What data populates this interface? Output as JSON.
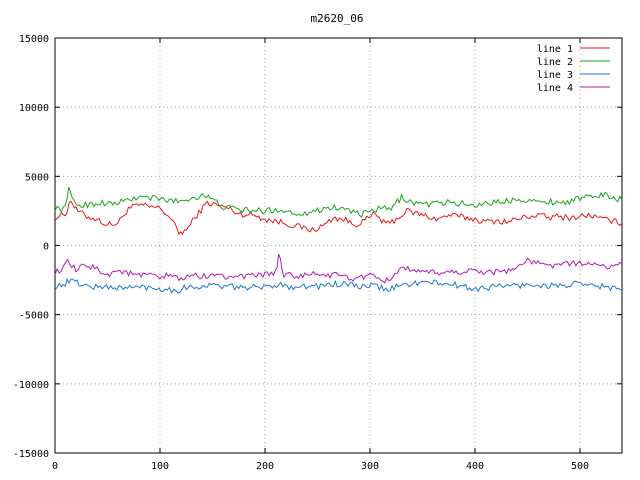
{
  "chart_data": {
    "type": "line",
    "title": "m2620_06",
    "xlabel": "",
    "ylabel": "",
    "xlim": [
      0,
      540
    ],
    "ylim": [
      -15000,
      15000
    ],
    "x_ticks": [
      0,
      100,
      200,
      300,
      400,
      500
    ],
    "y_ticks": [
      -15000,
      -10000,
      -5000,
      0,
      5000,
      10000,
      15000
    ],
    "grid": true,
    "legend_position": "top-right",
    "series": [
      {
        "name": "line 1",
        "color": "#e41a1c",
        "points": [
          [
            0,
            2000
          ],
          [
            10,
            2300
          ],
          [
            15,
            3300
          ],
          [
            20,
            2600
          ],
          [
            30,
            2100
          ],
          [
            40,
            1900
          ],
          [
            50,
            1500
          ],
          [
            60,
            1600
          ],
          [
            70,
            2700
          ],
          [
            80,
            2900
          ],
          [
            90,
            2800
          ],
          [
            100,
            2700
          ],
          [
            110,
            2000
          ],
          [
            118,
            900
          ],
          [
            125,
            1100
          ],
          [
            135,
            2200
          ],
          [
            145,
            3100
          ],
          [
            155,
            2900
          ],
          [
            165,
            2700
          ],
          [
            175,
            2300
          ],
          [
            190,
            2200
          ],
          [
            200,
            1900
          ],
          [
            215,
            1700
          ],
          [
            225,
            1500
          ],
          [
            235,
            1300
          ],
          [
            245,
            1100
          ],
          [
            255,
            1400
          ],
          [
            265,
            2000
          ],
          [
            275,
            1900
          ],
          [
            285,
            1500
          ],
          [
            295,
            1800
          ],
          [
            305,
            2300
          ],
          [
            315,
            1500
          ],
          [
            325,
            1900
          ],
          [
            335,
            2500
          ],
          [
            345,
            2300
          ],
          [
            355,
            2100
          ],
          [
            365,
            1900
          ],
          [
            375,
            2200
          ],
          [
            385,
            2100
          ],
          [
            400,
            1900
          ],
          [
            410,
            1700
          ],
          [
            420,
            1800
          ],
          [
            430,
            1700
          ],
          [
            440,
            1900
          ],
          [
            450,
            2100
          ],
          [
            460,
            2200
          ],
          [
            470,
            2000
          ],
          [
            480,
            2100
          ],
          [
            490,
            2000
          ],
          [
            500,
            2100
          ],
          [
            510,
            2200
          ],
          [
            520,
            1900
          ],
          [
            530,
            1800
          ],
          [
            540,
            1600
          ]
        ]
      },
      {
        "name": "line 2",
        "color": "#1aa31a",
        "points": [
          [
            0,
            2700
          ],
          [
            8,
            2600
          ],
          [
            13,
            4000
          ],
          [
            18,
            3100
          ],
          [
            25,
            2900
          ],
          [
            35,
            3000
          ],
          [
            45,
            3100
          ],
          [
            55,
            3000
          ],
          [
            65,
            3200
          ],
          [
            75,
            3400
          ],
          [
            85,
            3500
          ],
          [
            95,
            3400
          ],
          [
            105,
            3300
          ],
          [
            115,
            3200
          ],
          [
            125,
            3300
          ],
          [
            135,
            3500
          ],
          [
            140,
            3700
          ],
          [
            150,
            3300
          ],
          [
            160,
            2800
          ],
          [
            175,
            2600
          ],
          [
            190,
            2500
          ],
          [
            200,
            2500
          ],
          [
            210,
            2600
          ],
          [
            220,
            2500
          ],
          [
            230,
            2300
          ],
          [
            240,
            2400
          ],
          [
            250,
            2500
          ],
          [
            260,
            2800
          ],
          [
            270,
            2700
          ],
          [
            280,
            2600
          ],
          [
            290,
            2200
          ],
          [
            300,
            2400
          ],
          [
            310,
            2700
          ],
          [
            320,
            2600
          ],
          [
            330,
            3500
          ],
          [
            340,
            3100
          ],
          [
            350,
            3000
          ],
          [
            360,
            3000
          ],
          [
            370,
            3100
          ],
          [
            380,
            3100
          ],
          [
            390,
            3000
          ],
          [
            400,
            2900
          ],
          [
            410,
            3100
          ],
          [
            420,
            3100
          ],
          [
            430,
            3200
          ],
          [
            440,
            3400
          ],
          [
            450,
            3300
          ],
          [
            460,
            3100
          ],
          [
            470,
            3200
          ],
          [
            480,
            3100
          ],
          [
            490,
            3200
          ],
          [
            500,
            3400
          ],
          [
            510,
            3500
          ],
          [
            520,
            3700
          ],
          [
            530,
            3500
          ],
          [
            540,
            3300
          ]
        ]
      },
      {
        "name": "line 3",
        "color": "#1f78d1",
        "points": [
          [
            0,
            -3000
          ],
          [
            8,
            -2800
          ],
          [
            15,
            -2500
          ],
          [
            25,
            -2800
          ],
          [
            35,
            -3000
          ],
          [
            45,
            -3000
          ],
          [
            55,
            -3000
          ],
          [
            65,
            -3100
          ],
          [
            75,
            -3000
          ],
          [
            85,
            -3000
          ],
          [
            95,
            -3100
          ],
          [
            105,
            -3100
          ],
          [
            115,
            -3300
          ],
          [
            125,
            -3000
          ],
          [
            135,
            -3000
          ],
          [
            145,
            -2900
          ],
          [
            155,
            -2900
          ],
          [
            165,
            -3000
          ],
          [
            175,
            -3000
          ],
          [
            185,
            -3000
          ],
          [
            195,
            -3100
          ],
          [
            205,
            -2900
          ],
          [
            215,
            -2800
          ],
          [
            225,
            -3000
          ],
          [
            235,
            -2900
          ],
          [
            245,
            -3000
          ],
          [
            255,
            -2900
          ],
          [
            265,
            -2800
          ],
          [
            275,
            -2800
          ],
          [
            285,
            -2900
          ],
          [
            295,
            -3000
          ],
          [
            305,
            -2900
          ],
          [
            315,
            -3200
          ],
          [
            325,
            -3000
          ],
          [
            335,
            -2800
          ],
          [
            345,
            -2700
          ],
          [
            355,
            -2700
          ],
          [
            365,
            -2700
          ],
          [
            375,
            -2800
          ],
          [
            385,
            -2900
          ],
          [
            395,
            -3100
          ],
          [
            405,
            -3100
          ],
          [
            415,
            -3000
          ],
          [
            425,
            -2900
          ],
          [
            435,
            -2900
          ],
          [
            445,
            -2900
          ],
          [
            455,
            -2800
          ],
          [
            465,
            -2900
          ],
          [
            475,
            -2900
          ],
          [
            485,
            -2900
          ],
          [
            495,
            -2800
          ],
          [
            505,
            -2900
          ],
          [
            515,
            -2900
          ],
          [
            525,
            -3000
          ],
          [
            535,
            -3100
          ],
          [
            540,
            -3200
          ]
        ]
      },
      {
        "name": "line 4",
        "color": "#b31ab3",
        "points": [
          [
            0,
            -1900
          ],
          [
            8,
            -1700
          ],
          [
            12,
            -1200
          ],
          [
            20,
            -1800
          ],
          [
            30,
            -1400
          ],
          [
            40,
            -1700
          ],
          [
            50,
            -2100
          ],
          [
            60,
            -1800
          ],
          [
            70,
            -2000
          ],
          [
            80,
            -2200
          ],
          [
            90,
            -2100
          ],
          [
            100,
            -2400
          ],
          [
            110,
            -2100
          ],
          [
            120,
            -2500
          ],
          [
            130,
            -2100
          ],
          [
            140,
            -2300
          ],
          [
            150,
            -2000
          ],
          [
            160,
            -2300
          ],
          [
            170,
            -2100
          ],
          [
            180,
            -2300
          ],
          [
            190,
            -2200
          ],
          [
            200,
            -2100
          ],
          [
            210,
            -2000
          ],
          [
            213,
            -700
          ],
          [
            218,
            -2100
          ],
          [
            230,
            -2200
          ],
          [
            240,
            -2200
          ],
          [
            250,
            -2000
          ],
          [
            260,
            -2200
          ],
          [
            270,
            -2100
          ],
          [
            280,
            -2400
          ],
          [
            290,
            -2300
          ],
          [
            300,
            -2200
          ],
          [
            310,
            -2600
          ],
          [
            320,
            -2400
          ],
          [
            330,
            -1500
          ],
          [
            340,
            -1900
          ],
          [
            350,
            -2000
          ],
          [
            360,
            -1900
          ],
          [
            370,
            -2000
          ],
          [
            380,
            -1900
          ],
          [
            390,
            -1900
          ],
          [
            400,
            -1800
          ],
          [
            410,
            -1900
          ],
          [
            420,
            -1900
          ],
          [
            430,
            -1800
          ],
          [
            440,
            -1600
          ],
          [
            450,
            -1100
          ],
          [
            460,
            -1300
          ],
          [
            470,
            -1500
          ],
          [
            480,
            -1300
          ],
          [
            490,
            -1400
          ],
          [
            500,
            -1200
          ],
          [
            510,
            -1400
          ],
          [
            520,
            -1500
          ],
          [
            530,
            -1500
          ],
          [
            540,
            -1300
          ]
        ]
      }
    ]
  }
}
